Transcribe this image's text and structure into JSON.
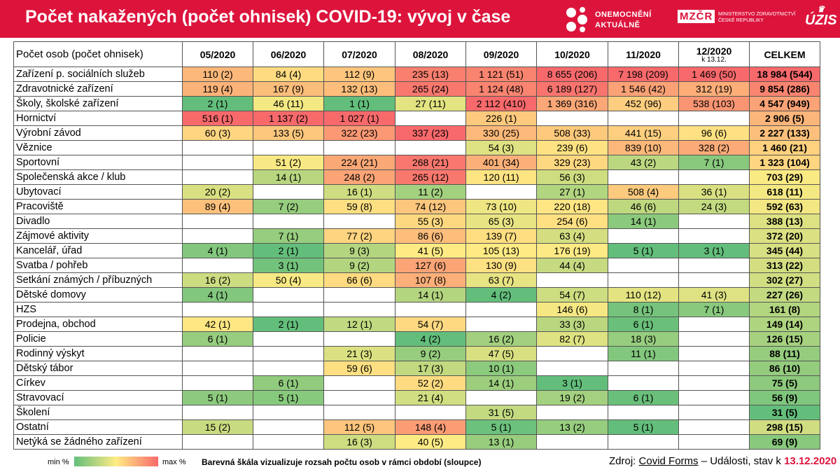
{
  "title": "Počet nakažených (počet ohnisek) COVID-19: vývoj v čase",
  "logos": {
    "onemocneni_line1": "ONEMOCNĚNÍ",
    "onemocneni_line2": "AKTUÁLNĚ",
    "mzd_abbr": "MZČR",
    "mzd_line1": "MINISTERSTVO ZDRAVOTNICTVÍ",
    "mzd_line2": "ČESKÉ REPUBLIKY",
    "uzis": "ÚZIS"
  },
  "colors": {
    "header": "#dc143c",
    "scale_min": "#63be7b",
    "scale_mid": "#ffeb84",
    "scale_max": "#f8696b"
  },
  "chart_data": {
    "type": "table",
    "row_header": "Počet osob (počet ohnisek)",
    "columns": [
      "05/2020",
      "06/2020",
      "07/2020",
      "08/2020",
      "09/2020",
      "10/2020",
      "11/2020",
      "12/2020"
    ],
    "column_subs": [
      "",
      "",
      "",
      "",
      "",
      "",
      "",
      "k 13.12."
    ],
    "total_header": "CELKEM",
    "rows": [
      {
        "label": "Zařízení p. sociálních služeb",
        "cells": [
          "110 (2)",
          "84 (4)",
          "112 (9)",
          "235 (13)",
          "1 121 (51)",
          "8 655 (206)",
          "7 198 (209)",
          "1 469 (50)"
        ],
        "total": "18 984 (544)"
      },
      {
        "label": "Zdravotnické zařízení",
        "cells": [
          "119 (4)",
          "167 (9)",
          "132 (13)",
          "265 (24)",
          "1 124 (48)",
          "6 189 (127)",
          "1 546 (42)",
          "312 (19)"
        ],
        "total": "9 854 (286)"
      },
      {
        "label": "Školy, školské zařízení",
        "cells": [
          "2 (1)",
          "46 (11)",
          "1 (1)",
          "27 (11)",
          "2 112 (410)",
          "1 369 (316)",
          "452 (96)",
          "538 (103)"
        ],
        "total": "4 547 (949)"
      },
      {
        "label": "Hornictví",
        "cells": [
          "516 (1)",
          "1 137 (2)",
          "1 027 (1)",
          "",
          "226 (1)",
          "",
          "",
          ""
        ],
        "total": "2 906 (5)"
      },
      {
        "label": "Výrobní závod",
        "cells": [
          "60 (3)",
          "133 (5)",
          "322 (23)",
          "337 (23)",
          "330 (25)",
          "508 (33)",
          "441 (15)",
          "96 (6)"
        ],
        "total": "2 227 (133)"
      },
      {
        "label": "Věznice",
        "cells": [
          "",
          "",
          "",
          "",
          "54 (3)",
          "239 (6)",
          "839 (10)",
          "328 (2)"
        ],
        "total": "1 460 (21)"
      },
      {
        "label": "Sportovní",
        "cells": [
          "",
          "51 (2)",
          "224 (21)",
          "268 (21)",
          "401 (34)",
          "329 (23)",
          "43 (2)",
          "7 (1)"
        ],
        "total": "1 323 (104)"
      },
      {
        "label": "Společenská akce / klub",
        "cells": [
          "",
          "14 (1)",
          "248 (2)",
          "265 (12)",
          "120 (11)",
          "56 (3)",
          "",
          ""
        ],
        "total": "703 (29)"
      },
      {
        "label": "Ubytovací",
        "cells": [
          "20 (2)",
          "",
          "16 (1)",
          "11 (2)",
          "",
          "27 (1)",
          "508 (4)",
          "36 (1)"
        ],
        "total": "618 (11)"
      },
      {
        "label": "Pracoviště",
        "cells": [
          "89 (4)",
          "7 (2)",
          "59 (8)",
          "74 (12)",
          "73 (10)",
          "220 (18)",
          "46 (6)",
          "24 (3)"
        ],
        "total": "592 (63)"
      },
      {
        "label": "Divadlo",
        "cells": [
          "",
          "",
          "",
          "55 (3)",
          "65 (3)",
          "254 (6)",
          "14 (1)",
          ""
        ],
        "total": "388 (13)"
      },
      {
        "label": "Zájmové aktivity",
        "cells": [
          "",
          "7 (1)",
          "77 (2)",
          "86 (6)",
          "139 (7)",
          "63 (4)",
          "",
          ""
        ],
        "total": "372 (20)"
      },
      {
        "label": "Kancelář, úřad",
        "cells": [
          "4 (1)",
          "2 (1)",
          "9 (3)",
          "41 (5)",
          "105 (13)",
          "176 (19)",
          "5 (1)",
          "3 (1)"
        ],
        "total": "345 (44)"
      },
      {
        "label": "Svatba / pohřeb",
        "cells": [
          "",
          "3 (1)",
          "9 (2)",
          "127 (6)",
          "130 (9)",
          "44 (4)",
          "",
          ""
        ],
        "total": "313 (22)"
      },
      {
        "label": "Setkání známých / příbuzných",
        "cells": [
          "16 (2)",
          "50 (4)",
          "66 (6)",
          "107 (8)",
          "63 (7)",
          "",
          "",
          ""
        ],
        "total": "302 (27)"
      },
      {
        "label": "Dětské domovy",
        "cells": [
          "4 (1)",
          "",
          "",
          "14 (1)",
          "4 (2)",
          "54 (7)",
          "110 (12)",
          "41 (3)"
        ],
        "total": "227 (26)"
      },
      {
        "label": "HZS",
        "cells": [
          "",
          "",
          "",
          "",
          "",
          "146 (6)",
          "8 (1)",
          "7 (1)"
        ],
        "total": "161 (8)"
      },
      {
        "label": "Prodejna, obchod",
        "cells": [
          "42 (1)",
          "2 (1)",
          "12 (1)",
          "54 (7)",
          "",
          "33 (3)",
          "6 (1)",
          ""
        ],
        "total": "149 (14)"
      },
      {
        "label": "Policie",
        "cells": [
          "6 (1)",
          "",
          "",
          "4 (2)",
          "16 (2)",
          "82 (7)",
          "18 (3)",
          ""
        ],
        "total": "126 (15)"
      },
      {
        "label": "Rodinný výskyt",
        "cells": [
          "",
          "",
          "21 (3)",
          "9 (2)",
          "47 (5)",
          "",
          "11 (1)",
          ""
        ],
        "total": "88 (11)"
      },
      {
        "label": "Dětský tábor",
        "cells": [
          "",
          "",
          "59 (6)",
          "17 (3)",
          "10 (1)",
          "",
          "",
          ""
        ],
        "total": "86 (10)"
      },
      {
        "label": "Církev",
        "cells": [
          "",
          "6 (1)",
          "",
          "52 (2)",
          "14 (1)",
          "3 (1)",
          "",
          ""
        ],
        "total": "75 (5)"
      },
      {
        "label": "Stravovací",
        "cells": [
          "5 (1)",
          "5 (1)",
          "",
          "21 (4)",
          "",
          "19 (2)",
          "6 (1)",
          ""
        ],
        "total": "56 (9)"
      },
      {
        "label": "Školení",
        "cells": [
          "",
          "",
          "",
          "",
          "31 (5)",
          "",
          "",
          ""
        ],
        "total": "31 (5)"
      },
      {
        "label": "Ostatní",
        "cells": [
          "15 (2)",
          "",
          "112 (5)",
          "148 (4)",
          "5 (1)",
          "13 (2)",
          "5 (1)",
          ""
        ],
        "total": "298 (15)"
      },
      {
        "label": "Netýká se žádného zařízení",
        "cells": [
          "",
          "",
          "16 (3)",
          "40 (5)",
          "13 (1)",
          "",
          "",
          ""
        ],
        "total": "69 (9)"
      }
    ]
  },
  "legend": {
    "min": "min %",
    "max": "max %",
    "note": "Barevná škála vizualizuje rozsah počtu osob v rámci období (sloupce)"
  },
  "source": {
    "prefix": "Zdroj: ",
    "link": "Covid Forms",
    "middle": " – Události, stav k ",
    "date": "13.12.2020"
  }
}
